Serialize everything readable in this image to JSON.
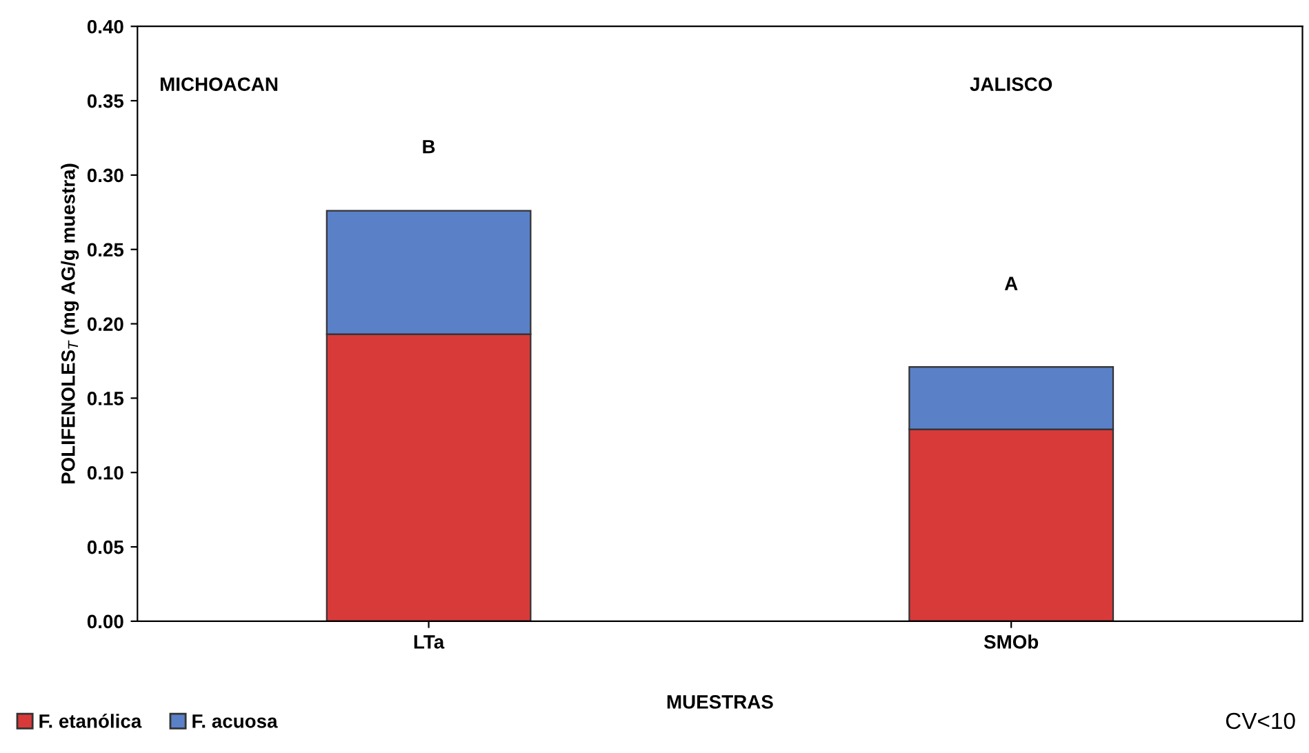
{
  "chart_data": {
    "type": "bar",
    "stacked": true,
    "xlabel": "MUESTRAS",
    "ylabel": "POLIFENOLES$_{T}$ (mg AG/g muestra)",
    "categories": [
      "LTa",
      "SMOb"
    ],
    "series": [
      {
        "name": "F. etanólica",
        "color": "#d83a3a",
        "values": [
          0.193,
          0.129
        ]
      },
      {
        "name": "F. acuosa",
        "color": "#5a80c8",
        "values": [
          0.083,
          0.042
        ]
      }
    ],
    "ylim": [
      0,
      0.4
    ],
    "yticks": [
      {
        "value": 0,
        "label": "0.00"
      },
      {
        "value": 0.05,
        "label": "0.05"
      },
      {
        "value": 0.1,
        "label": "0.10"
      },
      {
        "value": 0.15,
        "label": "0.15"
      },
      {
        "value": 0.2,
        "label": "0.20"
      },
      {
        "value": 0.25,
        "label": "0.25"
      },
      {
        "value": 0.3,
        "label": "0.30"
      },
      {
        "value": 0.35,
        "label": "0.35"
      },
      {
        "value": 0.4,
        "label": "0.40"
      }
    ],
    "grid": false,
    "legend": "bottom left",
    "annotations": [
      "B",
      "A",
      "MICHOACAN",
      "JALISCO",
      "CV<10"
    ]
  }
}
